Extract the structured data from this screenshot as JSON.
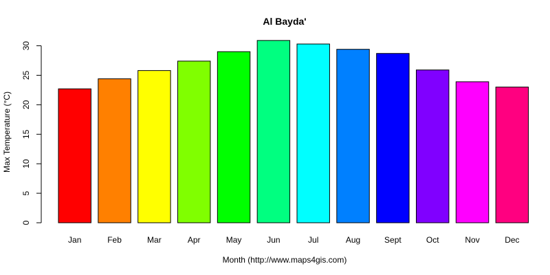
{
  "chart_data": {
    "type": "bar",
    "title": "Al Bayda'",
    "xlabel": "Month (http://www.maps4gis.com)",
    "ylabel": "Max Temperature (°C)",
    "categories": [
      "Jan",
      "Feb",
      "Mar",
      "Apr",
      "May",
      "Jun",
      "Jul",
      "Aug",
      "Sept",
      "Oct",
      "Nov",
      "Dec"
    ],
    "values": [
      22.7,
      24.4,
      25.8,
      27.4,
      29.0,
      30.9,
      30.3,
      29.4,
      28.7,
      25.9,
      23.9,
      23.0
    ],
    "colors": [
      "#FF0000",
      "#FF8000",
      "#FFFF00",
      "#80FF00",
      "#00FF00",
      "#00FF80",
      "#00FFFF",
      "#0080FF",
      "#0000FF",
      "#8000FF",
      "#FF00FF",
      "#FF0080"
    ],
    "yticks": [
      "0",
      "5",
      "10",
      "15",
      "20",
      "25",
      "30"
    ],
    "ylim": [
      0,
      31
    ],
    "grid": false,
    "legend": false
  }
}
